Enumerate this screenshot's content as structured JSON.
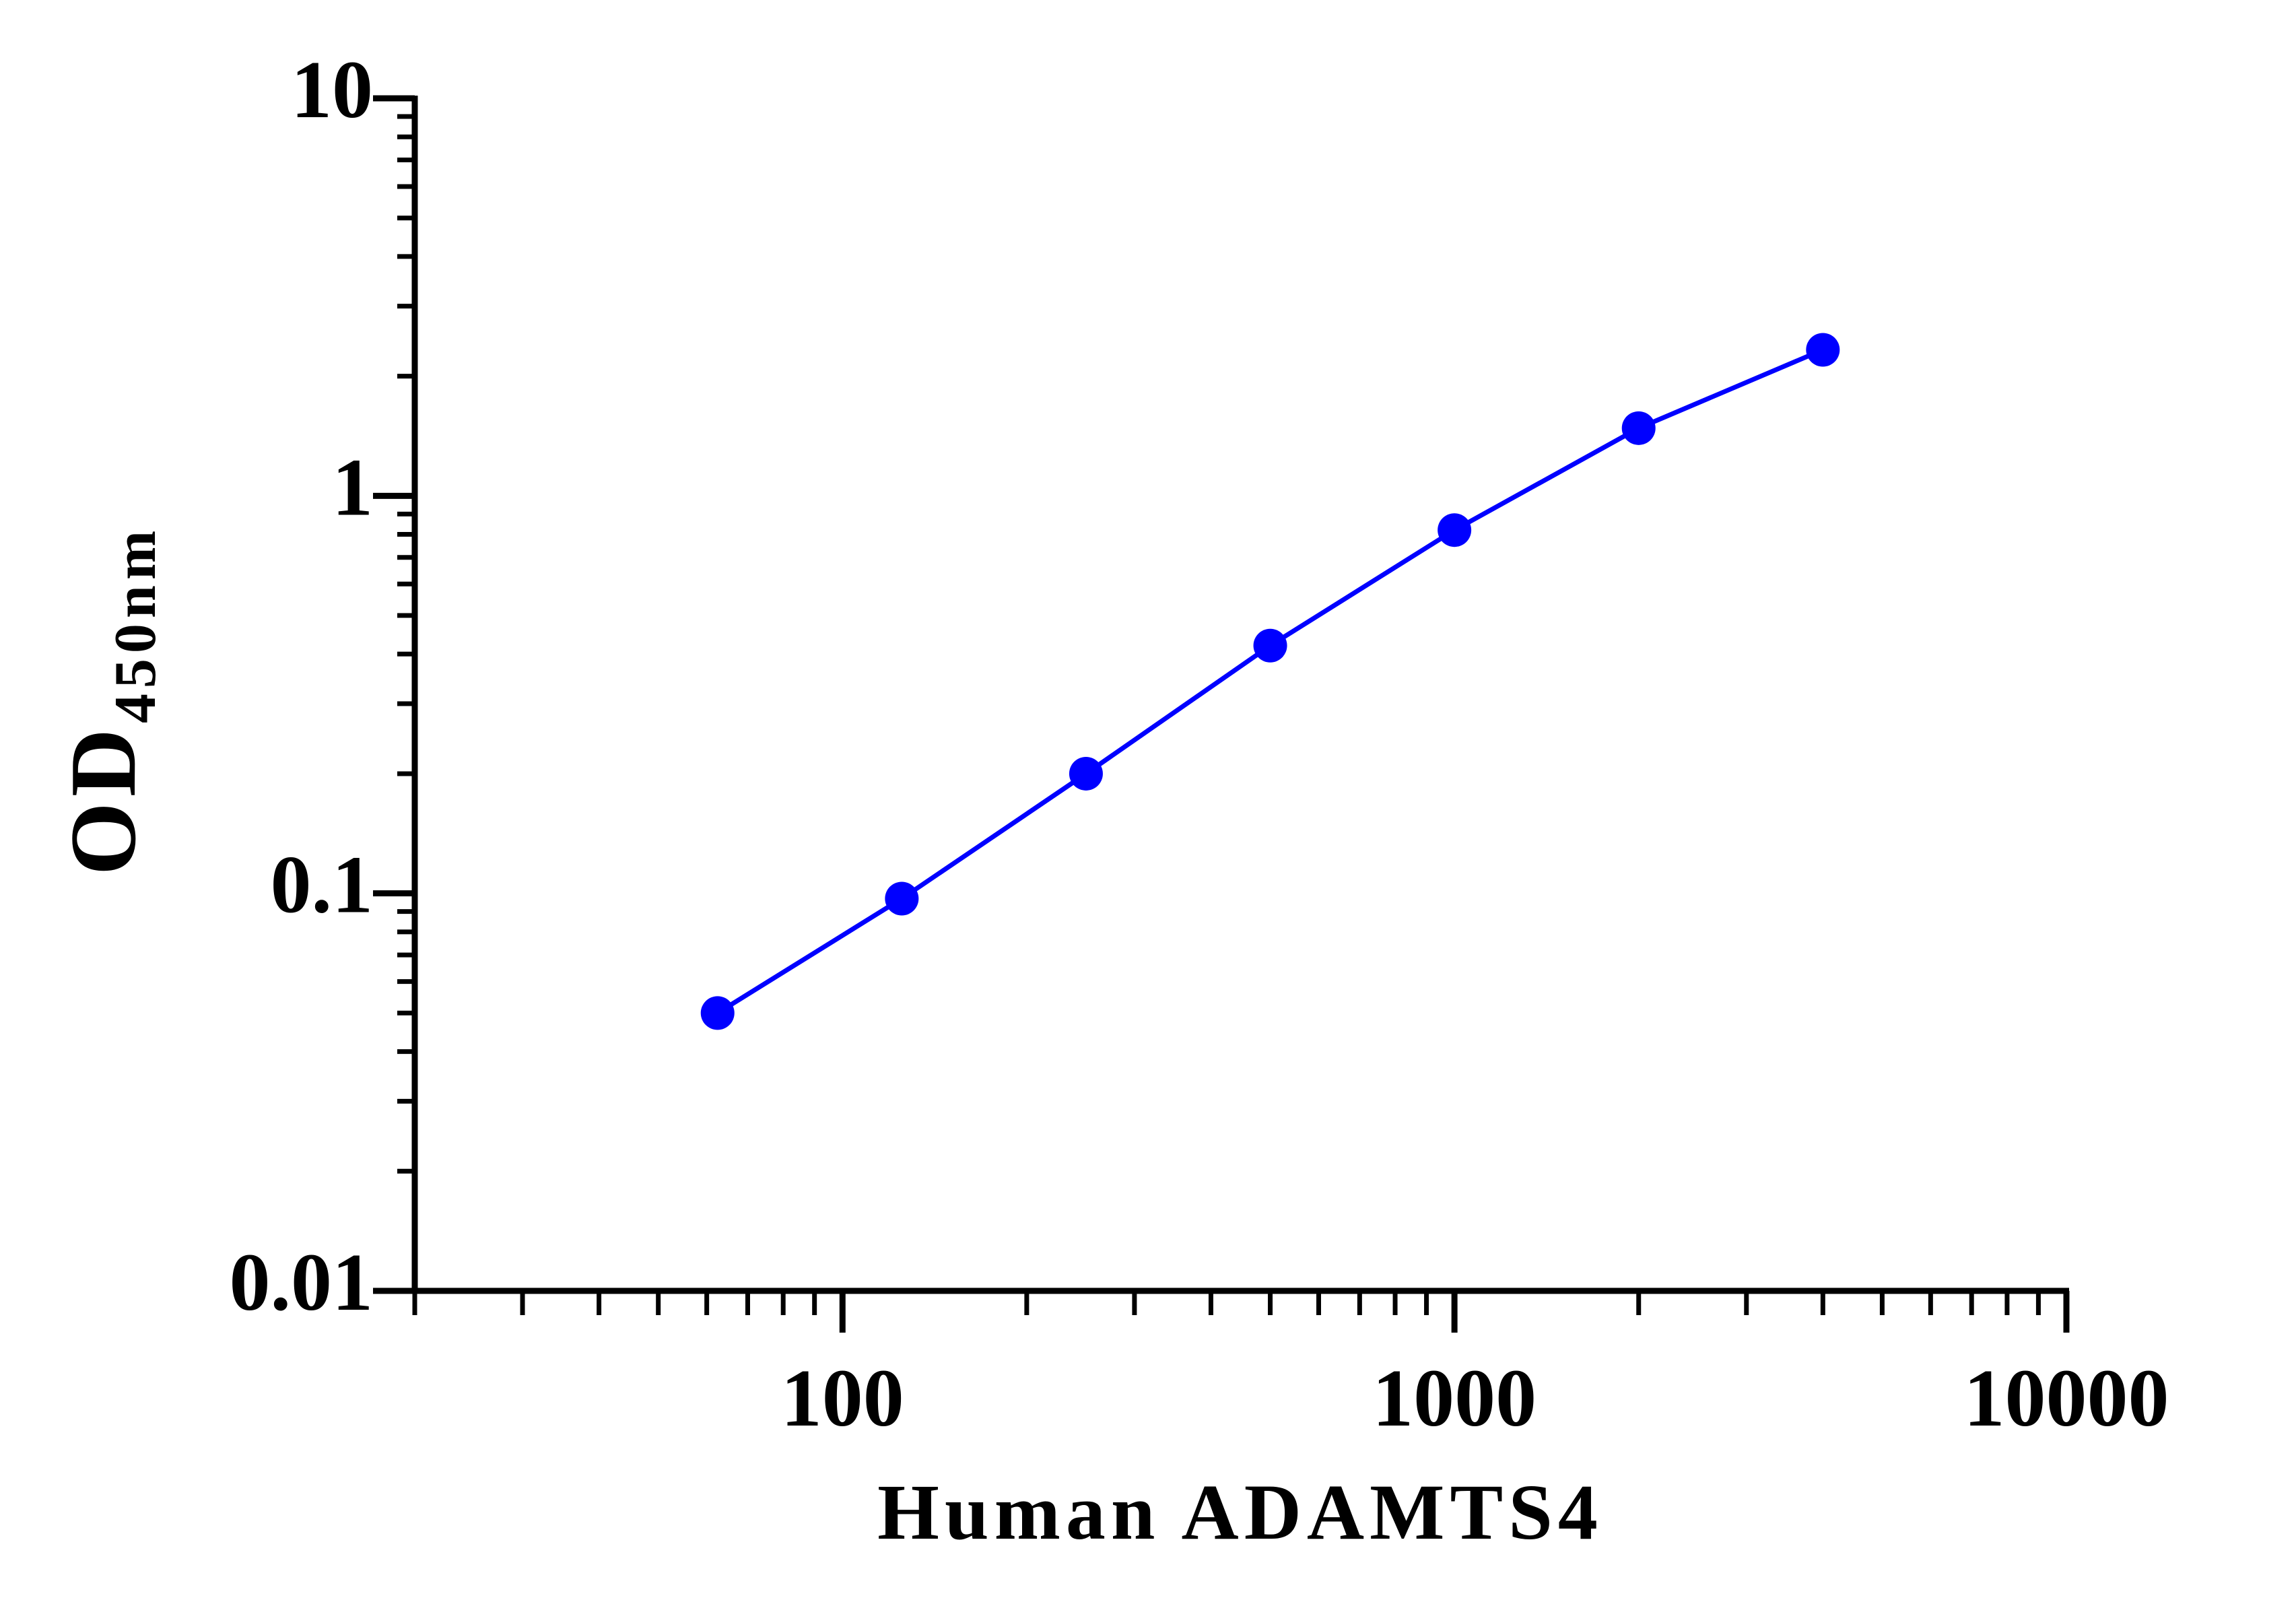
{
  "chart_data": {
    "type": "line",
    "x_label": "Human ADAMTS4",
    "y_label": "OD",
    "y_label_subscript": "450nm",
    "x": [
      62.5,
      125,
      250,
      500,
      1000,
      2000,
      4000
    ],
    "series": [
      {
        "color": "#0000ff",
        "values": [
          0.05,
          0.097,
          0.2,
          0.42,
          0.82,
          1.48,
          2.33
        ]
      }
    ],
    "xscale": "log",
    "yscale": "log",
    "xlim": [
      20,
      10000
    ],
    "xticks": [
      100,
      1000,
      10000
    ],
    "ylim": [
      0.01,
      10
    ],
    "yticks": [
      0.01,
      0.1,
      1,
      10
    ],
    "grid": false
  }
}
